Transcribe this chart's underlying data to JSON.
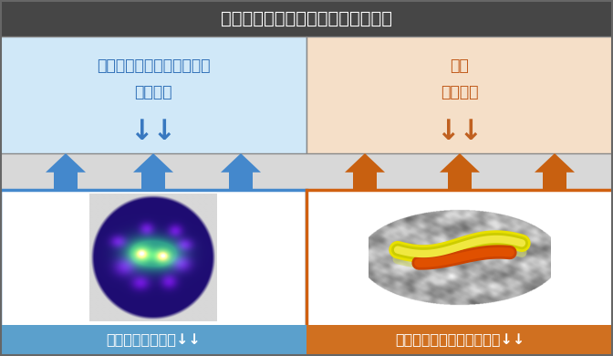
{
  "title": "パーキンソン病患者の認知機能障害",
  "title_bg": "#464646",
  "title_color": "#ffffff",
  "fig_bg": "#d8d8d8",
  "left_box_bg": "#d0e8f8",
  "right_box_bg": "#f5dfc8",
  "left_text_line1": "注意・ワーキングメモリー",
  "left_text_line2": "遂行機能",
  "right_text_line1": "記憶",
  "right_text_line2": "視覚処理",
  "left_text_color": "#3070b8",
  "right_text_color": "#c05818",
  "down_arrow_color_left": "#3878c0",
  "down_arrow_color_right": "#c06020",
  "up_arrow_color_left": "#4488cc",
  "up_arrow_color_right": "#c86010",
  "left_bottom_border": "#4488cc",
  "right_bottom_border": "#d06010",
  "bottom_label_bg_left": "#5ba0cc",
  "bottom_label_bg_right": "#d07020",
  "left_label": "ドパミン神経系",
  "right_label": "前頭・側頭葉の大脳皮質",
  "down_arrows": "↓↓",
  "box_separator_color": "#888888"
}
